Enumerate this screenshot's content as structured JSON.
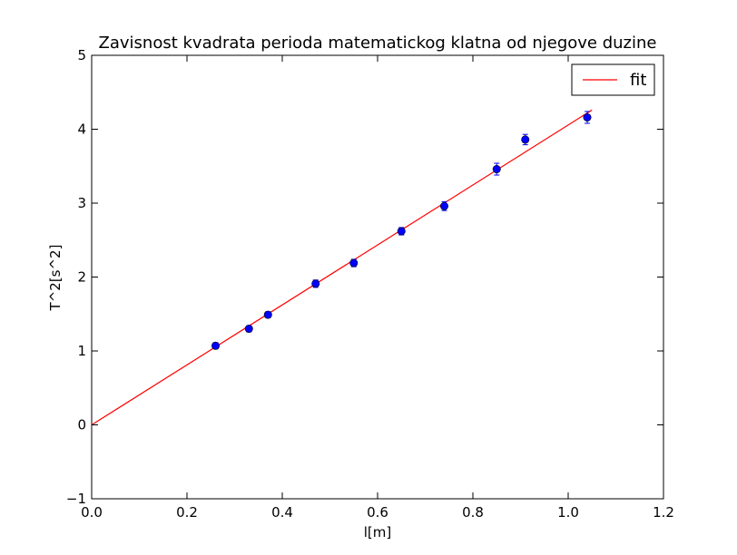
{
  "chart_data": {
    "type": "scatter",
    "title": "Zavisnost kvadrata perioda matematickog klatna od njegove duzine",
    "xlabel": "l[m]",
    "ylabel": "T^2[s^2]",
    "xlim": [
      0.0,
      1.2
    ],
    "ylim": [
      -1,
      5
    ],
    "xticks": [
      "0.0",
      "0.2",
      "0.4",
      "0.6",
      "0.8",
      "1.0",
      "1.2"
    ],
    "yticks": [
      "−1",
      "0",
      "1",
      "2",
      "3",
      "4",
      "5"
    ],
    "grid": false,
    "legend": {
      "position": "top-right",
      "entries": [
        "fit"
      ]
    },
    "series": [
      {
        "kind": "errorbar-points",
        "color": "#0000ff",
        "points": [
          {
            "x": 0.26,
            "y": 1.07,
            "err": 0.04
          },
          {
            "x": 0.33,
            "y": 1.3,
            "err": 0.04
          },
          {
            "x": 0.37,
            "y": 1.49,
            "err": 0.04
          },
          {
            "x": 0.47,
            "y": 1.91,
            "err": 0.05
          },
          {
            "x": 0.55,
            "y": 2.19,
            "err": 0.05
          },
          {
            "x": 0.65,
            "y": 2.62,
            "err": 0.05
          },
          {
            "x": 0.74,
            "y": 2.96,
            "err": 0.06
          },
          {
            "x": 0.85,
            "y": 3.46,
            "err": 0.08
          },
          {
            "x": 0.91,
            "y": 3.86,
            "err": 0.07
          },
          {
            "x": 1.04,
            "y": 4.16,
            "err": 0.08
          }
        ]
      },
      {
        "name": "fit",
        "kind": "line",
        "color": "#ff0000",
        "x": [
          0.0,
          1.05
        ],
        "y": [
          0.0,
          4.26
        ]
      }
    ]
  }
}
